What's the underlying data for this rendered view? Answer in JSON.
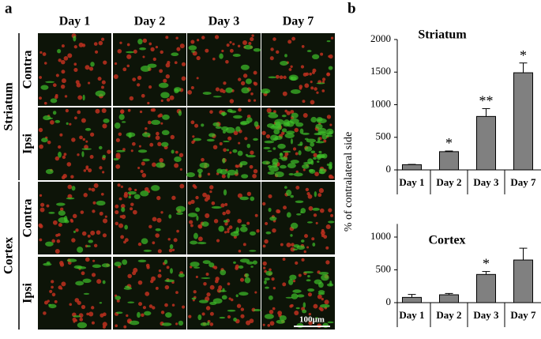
{
  "panel_labels": [
    "a",
    "b"
  ],
  "micrographs": {
    "columns": [
      "Day 1",
      "Day 2",
      "Day 3",
      "Day 7"
    ],
    "regions": [
      {
        "name": "Striatum",
        "rows": [
          "Contra",
          "Ipsi"
        ]
      },
      {
        "name": "Cortex",
        "rows": [
          "Contra",
          "Ipsi"
        ]
      }
    ],
    "scale_bar": "100μm"
  },
  "chart_data": [
    {
      "type": "bar",
      "title": "Striatum",
      "ylabel": "% of contralateral side",
      "categories": [
        "Day 1",
        "Day 2",
        "Day 3",
        "Day 7"
      ],
      "values": [
        80,
        280,
        820,
        1490
      ],
      "errors": [
        5,
        10,
        120,
        150
      ],
      "significance": [
        null,
        "*",
        "**",
        "*"
      ],
      "color": "#808080",
      "ylim": [
        0,
        2000
      ],
      "yticks": [
        0,
        500,
        1000,
        1500,
        2000
      ]
    },
    {
      "type": "bar",
      "title": "Cortex",
      "categories": [
        "Day 1",
        "Day 2",
        "Day 3",
        "Day 7"
      ],
      "values": [
        80,
        120,
        430,
        650
      ],
      "errors": [
        45,
        20,
        45,
        180
      ],
      "significance": [
        null,
        null,
        "*",
        null
      ],
      "color": "#808080",
      "ylim": [
        0,
        1200
      ],
      "yticks": [
        0,
        500,
        1000
      ]
    }
  ]
}
